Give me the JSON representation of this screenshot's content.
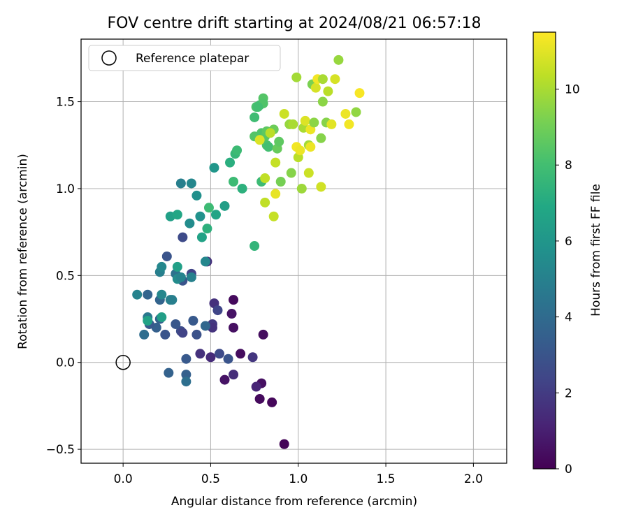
{
  "chart_data": {
    "type": "scatter",
    "title": "FOV centre drift starting at 2024/08/21 06:57:18",
    "xlabel": "Angular distance from reference (arcmin)",
    "ylabel": "Rotation from reference (arcmin)",
    "xlim": [
      -0.24,
      2.19
    ],
    "ylim": [
      -0.58,
      1.86
    ],
    "xticks": [
      0.0,
      0.5,
      1.0,
      1.5,
      2.0
    ],
    "xtick_labels": [
      "0.0",
      "0.5",
      "1.0",
      "1.5",
      "2.0"
    ],
    "yticks": [
      -0.5,
      0.0,
      0.5,
      1.0,
      1.5
    ],
    "ytick_labels": [
      "−0.5",
      "0.0",
      "0.5",
      "1.0",
      "1.5"
    ],
    "grid": true,
    "legend": {
      "placement": "top-left",
      "label": "Reference platepar",
      "marker": "open-circle"
    },
    "reference_point": {
      "x": 0.0,
      "y": 0.0
    },
    "colorbar": {
      "label": "Hours from first FF file",
      "colormap": "viridis",
      "range": [
        0,
        11.5
      ],
      "ticks": [
        0,
        2,
        4,
        6,
        8,
        10
      ],
      "tick_labels": [
        "0",
        "2",
        "4",
        "6",
        "8",
        "10"
      ]
    },
    "points": [
      [
        0.92,
        -0.47,
        0.1
      ],
      [
        0.78,
        -0.21,
        0.3
      ],
      [
        0.85,
        -0.23,
        0.2
      ],
      [
        0.79,
        -0.12,
        0.5
      ],
      [
        0.76,
        -0.14,
        1.2
      ],
      [
        0.58,
        -0.1,
        0.6
      ],
      [
        0.63,
        -0.07,
        1.5
      ],
      [
        0.67,
        0.05,
        0.4
      ],
      [
        0.74,
        0.03,
        1.8
      ],
      [
        0.8,
        0.16,
        0.4
      ],
      [
        0.63,
        0.36,
        0.3
      ],
      [
        0.62,
        0.28,
        0.6
      ],
      [
        0.63,
        0.2,
        0.5
      ],
      [
        0.52,
        0.34,
        1.6
      ],
      [
        0.54,
        0.3,
        2.4
      ],
      [
        0.51,
        0.22,
        1.9
      ],
      [
        0.51,
        0.2,
        1.7
      ],
      [
        0.48,
        0.58,
        1.5
      ],
      [
        0.5,
        0.03,
        1.4
      ],
      [
        0.44,
        0.05,
        1.6
      ],
      [
        0.55,
        0.05,
        2.6
      ],
      [
        0.6,
        0.02,
        3.0
      ],
      [
        0.47,
        0.21,
        3.8
      ],
      [
        0.42,
        0.16,
        2.9
      ],
      [
        0.39,
        0.51,
        2.3
      ],
      [
        0.4,
        0.24,
        3.2
      ],
      [
        0.34,
        0.72,
        2.6
      ],
      [
        0.34,
        0.47,
        3.0
      ],
      [
        0.33,
        0.18,
        2.7
      ],
      [
        0.34,
        0.17,
        2.3
      ],
      [
        0.3,
        0.22,
        3.1
      ],
      [
        0.36,
        0.02,
        3.2
      ],
      [
        0.36,
        -0.07,
        3.5
      ],
      [
        0.36,
        -0.11,
        4.2
      ],
      [
        0.26,
        -0.06,
        3.6
      ],
      [
        0.25,
        0.61,
        3.0
      ],
      [
        0.24,
        0.16,
        3.0
      ],
      [
        0.21,
        0.36,
        3.7
      ],
      [
        0.21,
        0.25,
        3.6
      ],
      [
        0.19,
        0.2,
        3.5
      ],
      [
        0.15,
        0.22,
        3.2
      ],
      [
        0.14,
        0.39,
        3.7
      ],
      [
        0.12,
        0.16,
        4.1
      ],
      [
        0.14,
        0.26,
        4.6
      ],
      [
        0.08,
        0.39,
        5.1
      ],
      [
        0.22,
        0.26,
        6.4
      ],
      [
        0.22,
        0.39,
        5.3
      ],
      [
        0.27,
        0.36,
        5.0
      ],
      [
        0.21,
        0.52,
        4.9
      ],
      [
        0.22,
        0.55,
        5.3
      ],
      [
        0.3,
        0.51,
        4.3
      ],
      [
        0.31,
        0.48,
        5.5
      ],
      [
        0.31,
        0.55,
        6.5
      ],
      [
        0.33,
        0.49,
        5.1
      ],
      [
        0.39,
        0.49,
        5.0
      ],
      [
        0.28,
        0.36,
        4.9
      ],
      [
        0.14,
        0.24,
        6.6
      ],
      [
        0.27,
        0.84,
        6.5
      ],
      [
        0.31,
        0.85,
        6.8
      ],
      [
        0.38,
        0.8,
        5.5
      ],
      [
        0.44,
        0.84,
        5.8
      ],
      [
        0.47,
        0.58,
        5.3
      ],
      [
        0.33,
        1.03,
        4.9
      ],
      [
        0.39,
        1.03,
        5.3
      ],
      [
        0.42,
        0.96,
        5.7
      ],
      [
        0.45,
        0.72,
        6.6
      ],
      [
        0.48,
        0.77,
        7.3
      ],
      [
        0.49,
        0.89,
        7.8
      ],
      [
        0.53,
        0.85,
        6.7
      ],
      [
        0.52,
        1.12,
        6.0
      ],
      [
        0.58,
        0.9,
        6.4
      ],
      [
        0.61,
        1.15,
        7.2
      ],
      [
        0.63,
        1.04,
        7.8
      ],
      [
        0.64,
        1.2,
        7.6
      ],
      [
        0.65,
        1.22,
        7.8
      ],
      [
        0.68,
        1.0,
        7.3
      ],
      [
        0.75,
        0.67,
        7.5
      ],
      [
        0.75,
        1.41,
        7.9
      ],
      [
        0.76,
        1.47,
        8.2
      ],
      [
        0.78,
        1.48,
        8.0
      ],
      [
        0.8,
        1.52,
        8.4
      ],
      [
        0.8,
        1.49,
        8.3
      ],
      [
        0.75,
        1.3,
        8.4
      ],
      [
        0.79,
        1.32,
        8.3
      ],
      [
        0.79,
        1.04,
        7.8
      ],
      [
        0.81,
        1.3,
        8.5
      ],
      [
        0.82,
        1.33,
        8.6
      ],
      [
        0.82,
        1.25,
        8.2
      ],
      [
        0.83,
        1.24,
        8.0
      ],
      [
        0.86,
        1.34,
        8.9
      ],
      [
        0.88,
        1.23,
        8.8
      ],
      [
        0.89,
        1.27,
        8.6
      ],
      [
        0.9,
        1.04,
        9.1
      ],
      [
        0.92,
        1.43,
        10.6
      ],
      [
        0.95,
        1.37,
        9.7
      ],
      [
        0.96,
        1.09,
        9.4
      ],
      [
        0.97,
        1.37,
        10.0
      ],
      [
        0.99,
        1.64,
        9.9
      ],
      [
        1.0,
        1.18,
        10.3
      ],
      [
        1.02,
        1.0,
        9.8
      ],
      [
        1.03,
        1.35,
        10.0
      ],
      [
        1.04,
        1.39,
        10.9
      ],
      [
        1.06,
        1.09,
        10.6
      ],
      [
        1.06,
        1.25,
        9.9
      ],
      [
        1.07,
        1.34,
        11.2
      ],
      [
        1.08,
        1.6,
        9.2
      ],
      [
        1.09,
        1.38,
        9.5
      ],
      [
        1.1,
        1.58,
        10.8
      ],
      [
        1.11,
        1.63,
        11.3
      ],
      [
        1.13,
        1.01,
        10.7
      ],
      [
        1.13,
        1.29,
        9.4
      ],
      [
        1.14,
        1.63,
        10.0
      ],
      [
        1.14,
        1.5,
        9.5
      ],
      [
        1.16,
        1.38,
        9.4
      ],
      [
        1.17,
        1.56,
        10.3
      ],
      [
        1.19,
        1.37,
        11.0
      ],
      [
        1.21,
        1.63,
        10.8
      ],
      [
        1.23,
        1.74,
        9.7
      ],
      [
        1.27,
        1.43,
        11.2
      ],
      [
        1.29,
        1.37,
        11.3
      ],
      [
        1.33,
        1.44,
        9.6
      ],
      [
        1.35,
        1.55,
        11.4
      ],
      [
        0.81,
        0.92,
        10.4
      ],
      [
        0.81,
        1.06,
        10.4
      ],
      [
        0.84,
        1.32,
        10.3
      ],
      [
        0.86,
        0.84,
        10.5
      ],
      [
        0.87,
        0.97,
        11.1
      ],
      [
        0.87,
        1.15,
        10.5
      ],
      [
        0.78,
        1.28,
        10.9
      ],
      [
        0.99,
        1.24,
        11.3
      ],
      [
        1.01,
        1.22,
        11.2
      ],
      [
        1.07,
        1.24,
        11.2
      ],
      [
        0.77,
        1.47,
        8.0
      ]
    ]
  }
}
